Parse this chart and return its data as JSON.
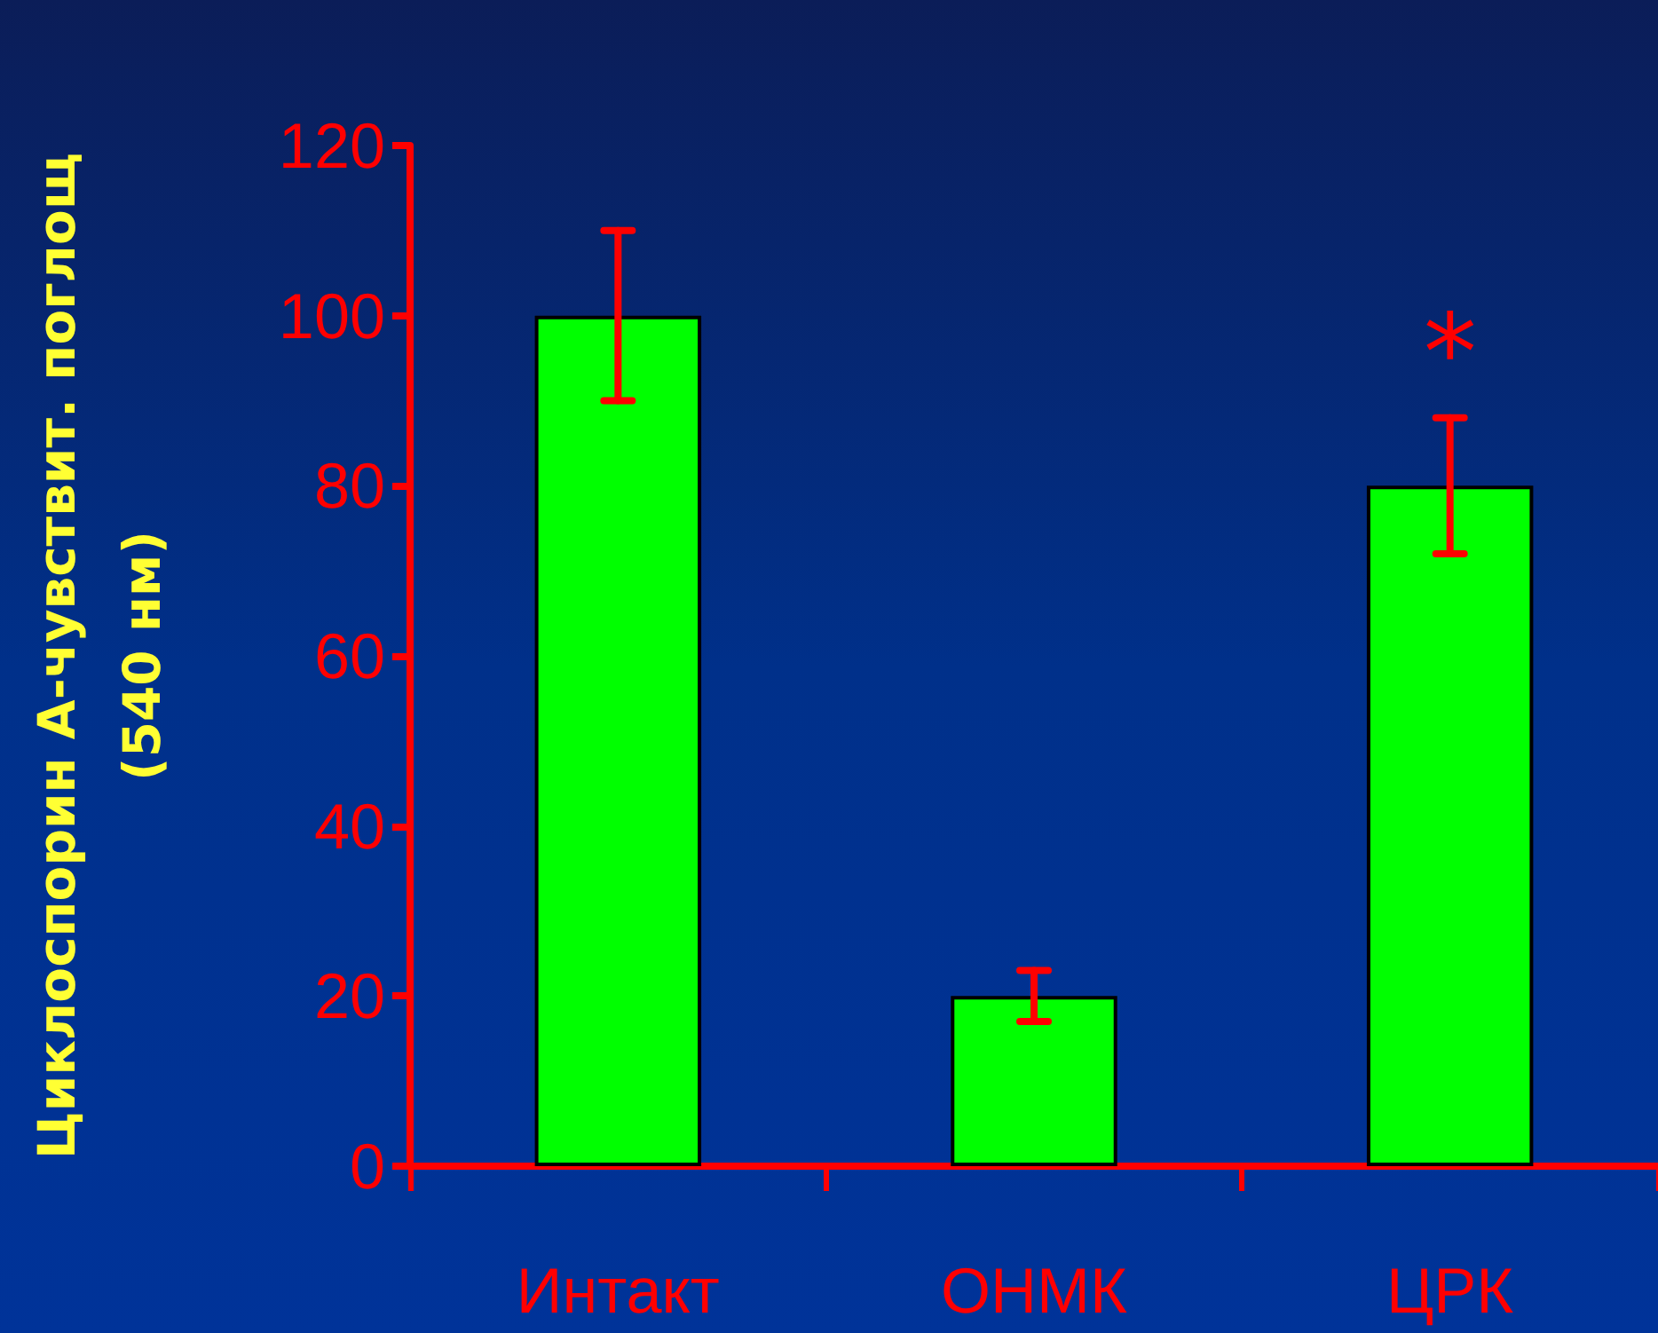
{
  "chart_data": {
    "type": "bar",
    "ylabel": "Циклоспорин А-чувствит. поглощ\n(540 нм)",
    "categories": [
      "Интакт",
      "ОНМК",
      "ЦРК"
    ],
    "values": [
      100,
      20,
      80
    ],
    "errors": [
      10,
      3,
      8
    ],
    "color": "#00ff00",
    "ylim": [
      0,
      120
    ],
    "yticks": [
      0,
      20,
      40,
      60,
      80,
      100,
      120
    ],
    "annotations": [
      {
        "text": "*",
        "x": "ЦРК",
        "y": 80
      }
    ]
  }
}
